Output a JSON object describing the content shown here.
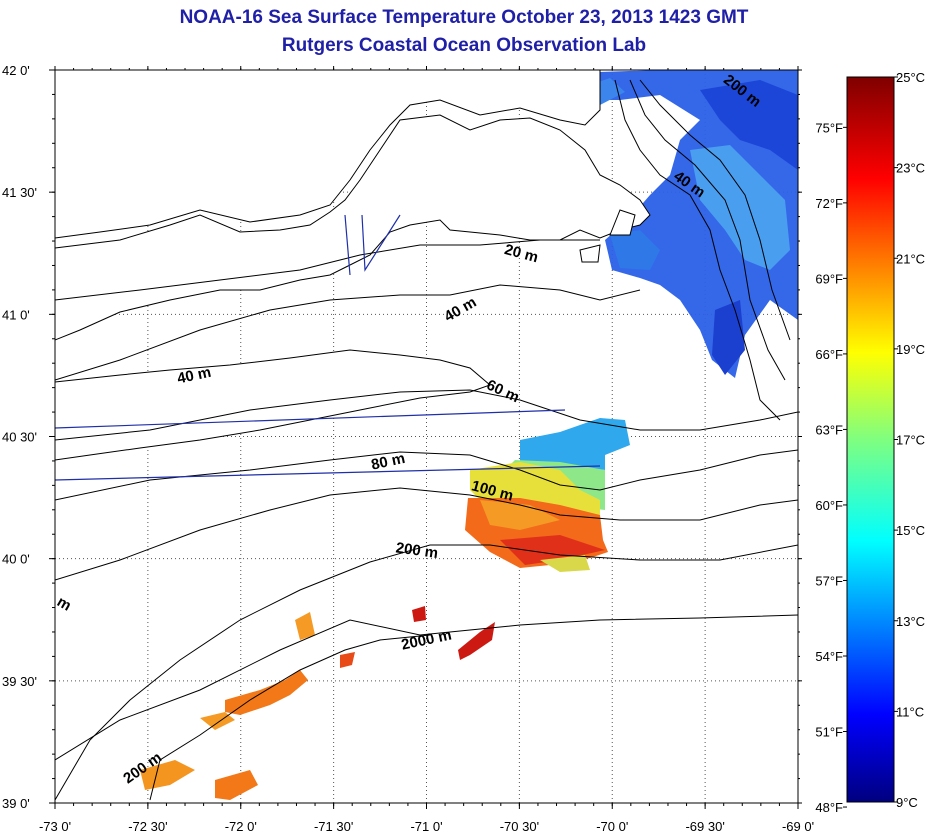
{
  "header": {
    "title": "NOAA-16 Sea Surface Temperature October 23, 2013 1423 GMT",
    "subtitle": "Rutgers Coastal Ocean Observation Lab"
  },
  "map": {
    "lon_range": [
      -73,
      -69
    ],
    "lat_range": [
      39,
      42
    ],
    "lon_ticks": [
      "-73 0'",
      "-72 30'",
      "-72 0'",
      "-71 30'",
      "-71 0'",
      "-70 30'",
      "-70 0'",
      "-69 30'",
      "-69 0'"
    ],
    "lat_ticks": [
      "42 0'",
      "41 30'",
      "41 0'",
      "40 30'",
      "40 0'",
      "39 30'",
      "39 0'"
    ],
    "contour_labels": [
      "200 m",
      "40 m",
      "20 m",
      "40 m",
      "40 m",
      "60 m",
      "80 m",
      "100 m",
      "200 m",
      "2000 m",
      "200 m",
      "m"
    ],
    "land_color": "#ffffff",
    "grid": "dotted"
  },
  "colorbar": {
    "celsius_labels": [
      "25°C",
      "23°C",
      "21°C",
      "19°C",
      "17°C",
      "15°C",
      "13°C",
      "11°C",
      "9°C"
    ],
    "fahrenheit_labels": [
      "75°F",
      "72°F",
      "69°F",
      "66°F",
      "63°F",
      "60°F",
      "57°F",
      "54°F",
      "51°F",
      "48°F"
    ],
    "range_celsius": [
      9,
      25
    ],
    "colormap": "jet"
  }
}
